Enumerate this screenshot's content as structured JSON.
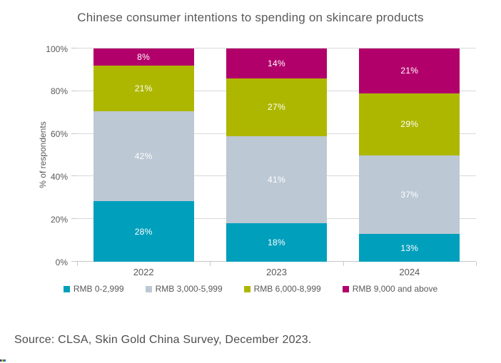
{
  "title": "Chinese consumer intentions to spending on skincare products",
  "source": "Source: CLSA, Skin Gold China Survey, December 2023.",
  "chart_data": {
    "type": "bar",
    "stacked": true,
    "title": "Chinese consumer intentions to spending on skincare products",
    "categories": [
      "2022",
      "2023",
      "2024"
    ],
    "series": [
      {
        "name": "RMB 0-2,999",
        "color": "#009fbc",
        "values": [
          28,
          18,
          13
        ]
      },
      {
        "name": "RMB 3,000-5,999",
        "color": "#bcc8d4",
        "values": [
          42,
          41,
          37
        ]
      },
      {
        "name": "RMB 6,000-8,999",
        "color": "#aeb700",
        "values": [
          21,
          27,
          29
        ]
      },
      {
        "name": "RMB 9,000 and above",
        "color": "#b2006b",
        "values": [
          8,
          14,
          21
        ]
      }
    ],
    "xlabel": "",
    "ylabel": "% of respondents",
    "ylim": [
      0,
      100
    ],
    "y_ticks": [
      "0%",
      "20%",
      "40%",
      "60%",
      "80%",
      "100%"
    ],
    "grid": true,
    "legend_position": "bottom",
    "data_labels": "value_percent_inside_white"
  },
  "corner_artifact_colors": [
    "#2c3e9e",
    "#f0a400",
    "#2e9b52",
    "#2f6fc4"
  ]
}
